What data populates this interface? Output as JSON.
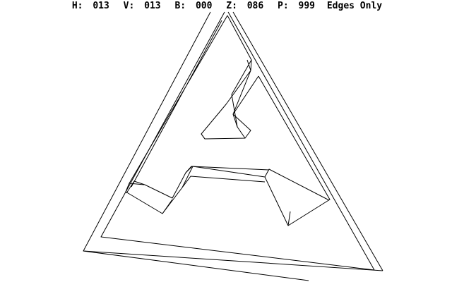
{
  "status": {
    "h_label": "H:",
    "h_value": "013",
    "v_label": "V:",
    "v_value": "013",
    "b_label": "B:",
    "b_value": "000",
    "z_label": "Z:",
    "z_value": "086",
    "p_label": "P:",
    "p_value": "999",
    "mode": "Edges Only"
  },
  "colors": {
    "background": "#ffffff",
    "line": "#000000"
  }
}
